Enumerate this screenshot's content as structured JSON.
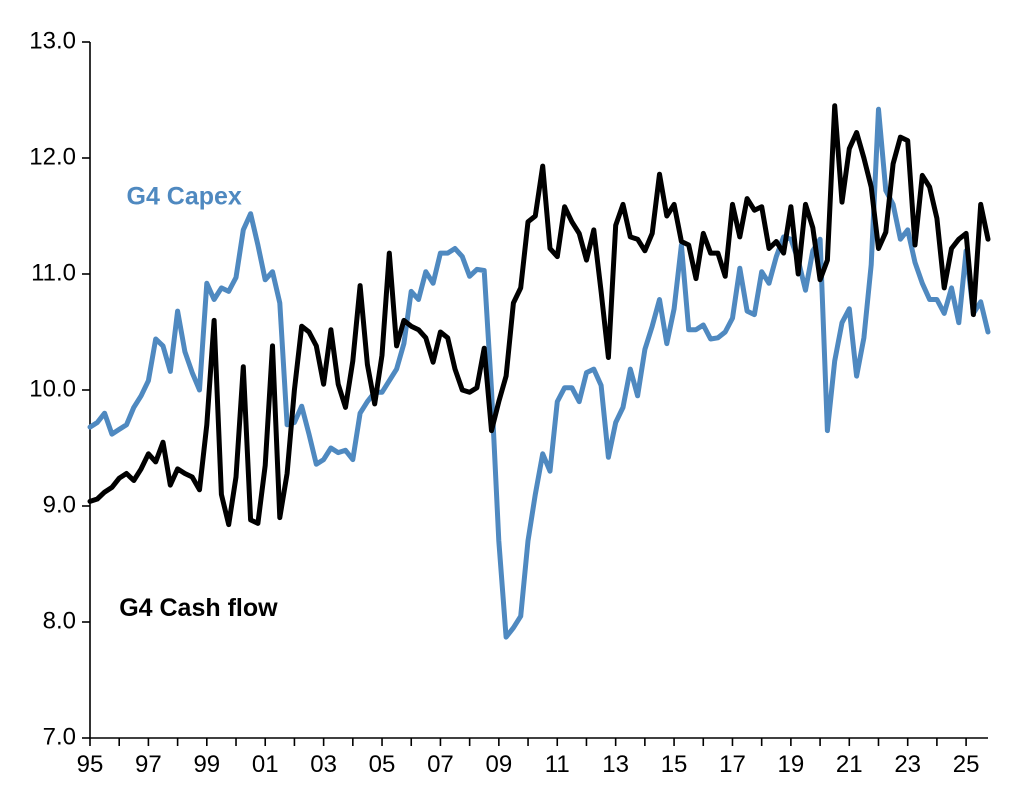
{
  "chart_data": {
    "type": "line",
    "title": "",
    "xlabel": "",
    "ylabel": "",
    "ylim": [
      7.0,
      13.0
    ],
    "xlim": [
      1995.0,
      2025.75
    ],
    "y_ticks": [
      "7.0",
      "8.0",
      "9.0",
      "10.0",
      "11.0",
      "12.0",
      "13.0"
    ],
    "x_ticks": [
      "95",
      "97",
      "99",
      "01",
      "03",
      "05",
      "07",
      "09",
      "11",
      "13",
      "15",
      "17",
      "19",
      "21",
      "23",
      "25"
    ],
    "grid": false,
    "legend": "inline labels",
    "series": [
      {
        "name": "G4 Capex",
        "color": "#4F89C0",
        "label_position": "upper-left",
        "points": [
          [
            1995.0,
            9.68
          ],
          [
            1995.25,
            9.72
          ],
          [
            1995.5,
            9.8
          ],
          [
            1995.75,
            9.62
          ],
          [
            1996.0,
            9.66
          ],
          [
            1996.25,
            9.7
          ],
          [
            1996.5,
            9.85
          ],
          [
            1996.75,
            9.95
          ],
          [
            1997.0,
            10.08
          ],
          [
            1997.25,
            10.44
          ],
          [
            1997.5,
            10.38
          ],
          [
            1997.75,
            10.16
          ],
          [
            1998.0,
            10.68
          ],
          [
            1998.25,
            10.33
          ],
          [
            1998.5,
            10.15
          ],
          [
            1998.75,
            10.0
          ],
          [
            1999.0,
            10.92
          ],
          [
            1999.25,
            10.78
          ],
          [
            1999.5,
            10.88
          ],
          [
            1999.75,
            10.85
          ],
          [
            2000.0,
            10.97
          ],
          [
            2000.25,
            11.38
          ],
          [
            2000.5,
            11.52
          ],
          [
            2000.75,
            11.25
          ],
          [
            2001.0,
            10.95
          ],
          [
            2001.25,
            11.02
          ],
          [
            2001.5,
            10.75
          ],
          [
            2001.75,
            9.7
          ],
          [
            2002.0,
            9.72
          ],
          [
            2002.25,
            9.86
          ],
          [
            2002.5,
            9.62
          ],
          [
            2002.75,
            9.36
          ],
          [
            2003.0,
            9.4
          ],
          [
            2003.25,
            9.5
          ],
          [
            2003.5,
            9.46
          ],
          [
            2003.75,
            9.48
          ],
          [
            2004.0,
            9.4
          ],
          [
            2004.25,
            9.8
          ],
          [
            2004.5,
            9.9
          ],
          [
            2004.75,
            9.98
          ],
          [
            2005.0,
            9.98
          ],
          [
            2005.25,
            10.08
          ],
          [
            2005.5,
            10.18
          ],
          [
            2005.75,
            10.4
          ],
          [
            2006.0,
            10.85
          ],
          [
            2006.25,
            10.78
          ],
          [
            2006.5,
            11.02
          ],
          [
            2006.75,
            10.92
          ],
          [
            2007.0,
            11.18
          ],
          [
            2007.25,
            11.18
          ],
          [
            2007.5,
            11.22
          ],
          [
            2007.75,
            11.15
          ],
          [
            2008.0,
            10.98
          ],
          [
            2008.25,
            11.04
          ],
          [
            2008.5,
            11.03
          ],
          [
            2008.75,
            10.0
          ],
          [
            2009.0,
            8.7
          ],
          [
            2009.25,
            7.87
          ],
          [
            2009.5,
            7.95
          ],
          [
            2009.75,
            8.05
          ],
          [
            2010.0,
            8.7
          ],
          [
            2010.25,
            9.1
          ],
          [
            2010.5,
            9.45
          ],
          [
            2010.75,
            9.3
          ],
          [
            2011.0,
            9.9
          ],
          [
            2011.25,
            10.02
          ],
          [
            2011.5,
            10.02
          ],
          [
            2011.75,
            9.9
          ],
          [
            2012.0,
            10.15
          ],
          [
            2012.25,
            10.18
          ],
          [
            2012.5,
            10.04
          ],
          [
            2012.75,
            9.42
          ],
          [
            2013.0,
            9.72
          ],
          [
            2013.25,
            9.85
          ],
          [
            2013.5,
            10.18
          ],
          [
            2013.75,
            9.95
          ],
          [
            2014.0,
            10.35
          ],
          [
            2014.25,
            10.55
          ],
          [
            2014.5,
            10.78
          ],
          [
            2014.75,
            10.4
          ],
          [
            2015.0,
            10.7
          ],
          [
            2015.25,
            11.25
          ],
          [
            2015.5,
            10.52
          ],
          [
            2015.75,
            10.52
          ],
          [
            2016.0,
            10.56
          ],
          [
            2016.25,
            10.44
          ],
          [
            2016.5,
            10.45
          ],
          [
            2016.75,
            10.5
          ],
          [
            2017.0,
            10.62
          ],
          [
            2017.25,
            11.05
          ],
          [
            2017.5,
            10.68
          ],
          [
            2017.75,
            10.65
          ],
          [
            2018.0,
            11.02
          ],
          [
            2018.25,
            10.92
          ],
          [
            2018.5,
            11.15
          ],
          [
            2018.75,
            11.32
          ],
          [
            2019.0,
            11.3
          ],
          [
            2019.25,
            11.12
          ],
          [
            2019.5,
            10.86
          ],
          [
            2019.75,
            11.2
          ],
          [
            2020.0,
            11.3
          ],
          [
            2020.25,
            9.65
          ],
          [
            2020.5,
            10.25
          ],
          [
            2020.75,
            10.58
          ],
          [
            2021.0,
            10.7
          ],
          [
            2021.25,
            10.12
          ],
          [
            2021.5,
            10.45
          ],
          [
            2021.75,
            11.08
          ],
          [
            2022.0,
            12.42
          ],
          [
            2022.25,
            11.72
          ],
          [
            2022.5,
            11.6
          ],
          [
            2022.75,
            11.3
          ],
          [
            2023.0,
            11.38
          ],
          [
            2023.25,
            11.1
          ],
          [
            2023.5,
            10.92
          ],
          [
            2023.75,
            10.78
          ],
          [
            2024.0,
            10.78
          ],
          [
            2024.25,
            10.66
          ],
          [
            2024.5,
            10.88
          ],
          [
            2024.75,
            10.58
          ],
          [
            2025.0,
            11.2
          ],
          [
            2025.25,
            10.66
          ],
          [
            2025.5,
            10.76
          ],
          [
            2025.75,
            10.5
          ]
        ]
      },
      {
        "name": "G4 Cash flow",
        "color": "#000000",
        "label_position": "lower-left",
        "points": [
          [
            1995.0,
            9.04
          ],
          [
            1995.25,
            9.06
          ],
          [
            1995.5,
            9.12
          ],
          [
            1995.75,
            9.16
          ],
          [
            1996.0,
            9.24
          ],
          [
            1996.25,
            9.28
          ],
          [
            1996.5,
            9.22
          ],
          [
            1996.75,
            9.32
          ],
          [
            1997.0,
            9.45
          ],
          [
            1997.25,
            9.38
          ],
          [
            1997.5,
            9.55
          ],
          [
            1997.75,
            9.18
          ],
          [
            1998.0,
            9.32
          ],
          [
            1998.25,
            9.28
          ],
          [
            1998.5,
            9.25
          ],
          [
            1998.75,
            9.14
          ],
          [
            1999.0,
            9.7
          ],
          [
            1999.25,
            10.6
          ],
          [
            1999.5,
            9.1
          ],
          [
            1999.75,
            8.84
          ],
          [
            2000.0,
            9.25
          ],
          [
            2000.25,
            10.2
          ],
          [
            2000.5,
            8.88
          ],
          [
            2000.75,
            8.85
          ],
          [
            2001.0,
            9.35
          ],
          [
            2001.25,
            10.38
          ],
          [
            2001.5,
            8.9
          ],
          [
            2001.75,
            9.28
          ],
          [
            2002.0,
            10.0
          ],
          [
            2002.25,
            10.55
          ],
          [
            2002.5,
            10.5
          ],
          [
            2002.75,
            10.38
          ],
          [
            2003.0,
            10.05
          ],
          [
            2003.25,
            10.52
          ],
          [
            2003.5,
            10.05
          ],
          [
            2003.75,
            9.85
          ],
          [
            2004.0,
            10.25
          ],
          [
            2004.25,
            10.9
          ],
          [
            2004.5,
            10.22
          ],
          [
            2004.75,
            9.88
          ],
          [
            2005.0,
            10.3
          ],
          [
            2005.25,
            11.18
          ],
          [
            2005.5,
            10.38
          ],
          [
            2005.75,
            10.6
          ],
          [
            2006.0,
            10.55
          ],
          [
            2006.25,
            10.52
          ],
          [
            2006.5,
            10.45
          ],
          [
            2006.75,
            10.24
          ],
          [
            2007.0,
            10.5
          ],
          [
            2007.25,
            10.45
          ],
          [
            2007.5,
            10.18
          ],
          [
            2007.75,
            10.0
          ],
          [
            2008.0,
            9.98
          ],
          [
            2008.25,
            10.02
          ],
          [
            2008.5,
            10.36
          ],
          [
            2008.75,
            9.65
          ],
          [
            2009.0,
            9.9
          ],
          [
            2009.25,
            10.12
          ],
          [
            2009.5,
            10.75
          ],
          [
            2009.75,
            10.88
          ],
          [
            2010.0,
            11.45
          ],
          [
            2010.25,
            11.5
          ],
          [
            2010.5,
            11.93
          ],
          [
            2010.75,
            11.22
          ],
          [
            2011.0,
            11.15
          ],
          [
            2011.25,
            11.58
          ],
          [
            2011.5,
            11.45
          ],
          [
            2011.75,
            11.35
          ],
          [
            2012.0,
            11.12
          ],
          [
            2012.25,
            11.38
          ],
          [
            2012.5,
            10.85
          ],
          [
            2012.75,
            10.28
          ],
          [
            2013.0,
            11.42
          ],
          [
            2013.25,
            11.6
          ],
          [
            2013.5,
            11.32
          ],
          [
            2013.75,
            11.3
          ],
          [
            2014.0,
            11.2
          ],
          [
            2014.25,
            11.35
          ],
          [
            2014.5,
            11.86
          ],
          [
            2014.75,
            11.5
          ],
          [
            2015.0,
            11.6
          ],
          [
            2015.25,
            11.28
          ],
          [
            2015.5,
            11.25
          ],
          [
            2015.75,
            10.96
          ],
          [
            2016.0,
            11.35
          ],
          [
            2016.25,
            11.18
          ],
          [
            2016.5,
            11.18
          ],
          [
            2016.75,
            10.98
          ],
          [
            2017.0,
            11.6
          ],
          [
            2017.25,
            11.32
          ],
          [
            2017.5,
            11.65
          ],
          [
            2017.75,
            11.55
          ],
          [
            2018.0,
            11.58
          ],
          [
            2018.25,
            11.22
          ],
          [
            2018.5,
            11.28
          ],
          [
            2018.75,
            11.18
          ],
          [
            2019.0,
            11.58
          ],
          [
            2019.25,
            11.0
          ],
          [
            2019.5,
            11.6
          ],
          [
            2019.75,
            11.4
          ],
          [
            2020.0,
            10.95
          ],
          [
            2020.25,
            11.12
          ],
          [
            2020.5,
            12.45
          ],
          [
            2020.75,
            11.62
          ],
          [
            2021.0,
            12.08
          ],
          [
            2021.25,
            12.22
          ],
          [
            2021.5,
            12.0
          ],
          [
            2021.75,
            11.75
          ],
          [
            2022.0,
            11.22
          ],
          [
            2022.25,
            11.36
          ],
          [
            2022.5,
            11.95
          ],
          [
            2022.75,
            12.18
          ],
          [
            2023.0,
            12.15
          ],
          [
            2023.25,
            11.25
          ],
          [
            2023.5,
            11.85
          ],
          [
            2023.75,
            11.75
          ],
          [
            2024.0,
            11.48
          ],
          [
            2024.25,
            10.88
          ],
          [
            2024.5,
            11.22
          ],
          [
            2024.75,
            11.3
          ],
          [
            2025.0,
            11.35
          ],
          [
            2025.25,
            10.65
          ],
          [
            2025.5,
            11.6
          ],
          [
            2025.75,
            11.3
          ]
        ]
      }
    ]
  }
}
